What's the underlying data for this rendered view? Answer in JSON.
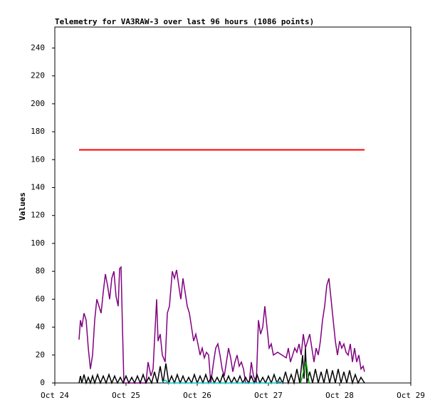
{
  "chart_data": {
    "type": "line",
    "title": "Telemetry for VA3RAW-3 over last 96 hours (1086 points)",
    "y_label": "Values",
    "xlim": [
      0,
      5
    ],
    "xticks": [
      {
        "value": 0,
        "label": "Oct 24"
      },
      {
        "value": 1,
        "label": "Oct 25"
      },
      {
        "value": 2,
        "label": "Oct 26"
      },
      {
        "value": 3,
        "label": "Oct 27"
      },
      {
        "value": 4,
        "label": "Oct 28"
      },
      {
        "value": 5,
        "label": "Oct 29"
      }
    ],
    "ylim": [
      0,
      255
    ],
    "yticks": [
      0,
      20,
      40,
      60,
      80,
      100,
      120,
      140,
      160,
      180,
      200,
      220,
      240
    ],
    "series": [
      {
        "color": "#ff0000",
        "x": [
          0.34,
          4.35
        ],
        "values": [
          167,
          167
        ]
      },
      {
        "color": "#800080",
        "x": [
          0.34,
          0.36,
          0.38,
          0.41,
          0.44,
          0.47,
          0.5,
          0.53,
          0.56,
          0.59,
          0.62,
          0.65,
          0.68,
          0.71,
          0.74,
          0.77,
          0.8,
          0.83,
          0.86,
          0.89,
          0.91,
          0.93,
          0.95,
          0.97,
          1.03,
          1.13,
          1.23,
          1.28,
          1.31,
          1.35,
          1.38,
          1.41,
          1.43,
          1.45,
          1.48,
          1.51,
          1.55,
          1.58,
          1.61,
          1.65,
          1.68,
          1.71,
          1.74,
          1.77,
          1.8,
          1.83,
          1.86,
          1.89,
          1.92,
          1.95,
          1.98,
          2.01,
          2.04,
          2.07,
          2.1,
          2.13,
          2.16,
          2.19,
          2.23,
          2.26,
          2.29,
          2.32,
          2.35,
          2.38,
          2.41,
          2.44,
          2.47,
          2.5,
          2.53,
          2.56,
          2.59,
          2.62,
          2.65,
          2.68,
          2.73,
          2.76,
          2.79,
          2.83,
          2.86,
          2.89,
          2.92,
          2.95,
          2.98,
          3.01,
          3.04,
          3.07,
          3.13,
          3.19,
          3.25,
          3.28,
          3.31,
          3.34,
          3.37,
          3.4,
          3.43,
          3.46,
          3.49,
          3.52,
          3.55,
          3.58,
          3.61,
          3.64,
          3.67,
          3.7,
          3.73,
          3.76,
          3.79,
          3.82,
          3.85,
          3.88,
          3.91,
          3.94,
          3.97,
          4.0,
          4.03,
          4.06,
          4.09,
          4.12,
          4.15,
          4.18,
          4.21,
          4.24,
          4.27,
          4.3,
          4.33,
          4.35
        ],
        "values": [
          31,
          45,
          40,
          50,
          45,
          25,
          10,
          20,
          45,
          60,
          55,
          50,
          65,
          78,
          70,
          60,
          75,
          80,
          62,
          55,
          82,
          83,
          40,
          0,
          0,
          0,
          0,
          0,
          15,
          5,
          10,
          40,
          60,
          30,
          35,
          20,
          15,
          50,
          55,
          80,
          75,
          81,
          70,
          60,
          75,
          65,
          55,
          50,
          40,
          30,
          35,
          28,
          20,
          25,
          18,
          22,
          20,
          0,
          15,
          25,
          28,
          20,
          10,
          5,
          15,
          25,
          18,
          8,
          15,
          20,
          12,
          15,
          10,
          0,
          0,
          15,
          5,
          0,
          45,
          35,
          40,
          55,
          40,
          25,
          28,
          20,
          22,
          20,
          18,
          25,
          15,
          20,
          25,
          22,
          28,
          20,
          35,
          25,
          30,
          35,
          25,
          15,
          25,
          20,
          30,
          45,
          55,
          70,
          75,
          60,
          45,
          30,
          20,
          30,
          25,
          28,
          22,
          20,
          28,
          15,
          25,
          15,
          20,
          10,
          12,
          8
        ]
      },
      {
        "color": "#000000",
        "x": [
          0.34,
          0.36,
          0.38,
          0.41,
          0.44,
          0.47,
          0.5,
          0.53,
          0.56,
          0.6,
          0.64,
          0.68,
          0.72,
          0.76,
          0.8,
          0.84,
          0.88,
          0.92,
          0.96,
          1.0,
          1.04,
          1.08,
          1.12,
          1.16,
          1.2,
          1.24,
          1.28,
          1.32,
          1.36,
          1.4,
          1.44,
          1.48,
          1.52,
          1.56,
          1.6,
          1.64,
          1.68,
          1.72,
          1.76,
          1.8,
          1.84,
          1.88,
          1.92,
          1.96,
          2.0,
          2.04,
          2.08,
          2.12,
          2.16,
          2.2,
          2.24,
          2.28,
          2.32,
          2.36,
          2.4,
          2.44,
          2.48,
          2.52,
          2.56,
          2.6,
          2.64,
          2.68,
          2.72,
          2.76,
          2.8,
          2.84,
          2.88,
          2.92,
          2.96,
          3.0,
          3.04,
          3.08,
          3.12,
          3.16,
          3.2,
          3.24,
          3.28,
          3.32,
          3.36,
          3.4,
          3.44,
          3.48,
          3.5,
          3.52,
          3.54,
          3.58,
          3.62,
          3.66,
          3.7,
          3.74,
          3.78,
          3.82,
          3.86,
          3.9,
          3.94,
          3.98,
          4.02,
          4.06,
          4.1,
          4.14,
          4.18,
          4.22,
          4.26,
          4.3,
          4.35
        ],
        "values": [
          0,
          5,
          0,
          6,
          0,
          4,
          0,
          5,
          0,
          6,
          0,
          5,
          0,
          6,
          0,
          5,
          0,
          4,
          0,
          5,
          0,
          4,
          0,
          5,
          0,
          6,
          0,
          4,
          0,
          8,
          0,
          12,
          0,
          14,
          0,
          5,
          0,
          6,
          0,
          5,
          0,
          4,
          0,
          6,
          0,
          5,
          0,
          6,
          0,
          5,
          0,
          4,
          0,
          6,
          0,
          5,
          0,
          4,
          0,
          5,
          0,
          4,
          0,
          5,
          0,
          6,
          0,
          4,
          0,
          5,
          0,
          6,
          0,
          4,
          0,
          8,
          0,
          6,
          0,
          10,
          0,
          20,
          3,
          25,
          0,
          8,
          0,
          10,
          0,
          8,
          0,
          10,
          0,
          9,
          0,
          10,
          0,
          8,
          0,
          9,
          0,
          6,
          0,
          4,
          0
        ]
      },
      {
        "color": "#00a000",
        "x": [
          3.45,
          3.48,
          3.51,
          3.53,
          3.55,
          3.57
        ],
        "values": [
          0,
          5,
          12,
          15,
          8,
          0
        ]
      },
      {
        "color": "#00c0c0",
        "x": [
          1.5,
          1.55,
          1.6,
          3.1,
          3.15,
          3.2
        ],
        "values": [
          0,
          2,
          0,
          0,
          1,
          0
        ]
      }
    ]
  }
}
